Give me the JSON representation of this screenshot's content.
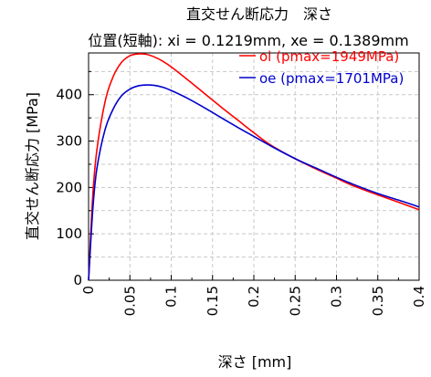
{
  "chart_data": {
    "type": "line",
    "title": "直交せん断応力　深さ",
    "subtitle": "位置(短軸): xi = 0.1219mm, xe = 0.1389mm",
    "xlabel": "深さ [mm]",
    "ylabel": "直交せん断応力 [MPa]",
    "xlim": [
      0,
      0.4
    ],
    "ylim": [
      0,
      490
    ],
    "xticks": [
      0,
      0.05,
      0.1,
      0.15,
      0.2,
      0.25,
      0.3,
      0.35,
      0.4
    ],
    "xtick_labels": [
      "0",
      "0.05",
      "0.1",
      "0.15",
      "0.2",
      "0.25",
      "0.3",
      "0.35",
      "0.4"
    ],
    "yticks": [
      0,
      100,
      200,
      300,
      400
    ],
    "ytick_labels": [
      "0",
      "100",
      "200",
      "300",
      "400"
    ],
    "grid": true,
    "legend_position": "top-right",
    "series": [
      {
        "name": "oi (pmax=1949MPa)",
        "color": "#ff0000",
        "x": [
          0,
          0.005,
          0.01,
          0.02,
          0.03,
          0.04,
          0.05,
          0.06,
          0.07,
          0.08,
          0.09,
          0.1,
          0.12,
          0.14,
          0.16,
          0.18,
          0.2,
          0.22,
          0.25,
          0.28,
          0.3,
          0.32,
          0.35,
          0.38,
          0.4
        ],
        "y": [
          0,
          180,
          280,
          385,
          440,
          470,
          484,
          488,
          487,
          481,
          472,
          460,
          432,
          403,
          374,
          346,
          318,
          292,
          262,
          236,
          220,
          204,
          184,
          165,
          152
        ]
      },
      {
        "name": "oe (pmax=1701MPa)",
        "color": "#0000cc",
        "x": [
          0,
          0.005,
          0.01,
          0.02,
          0.03,
          0.04,
          0.05,
          0.06,
          0.07,
          0.08,
          0.09,
          0.1,
          0.12,
          0.14,
          0.16,
          0.18,
          0.2,
          0.22,
          0.25,
          0.28,
          0.3,
          0.32,
          0.35,
          0.38,
          0.4
        ],
        "y": [
          0,
          150,
          240,
          325,
          370,
          398,
          412,
          419,
          421,
          420,
          416,
          409,
          392,
          372,
          351,
          330,
          310,
          290,
          262,
          238,
          222,
          207,
          187,
          170,
          158
        ]
      }
    ]
  }
}
